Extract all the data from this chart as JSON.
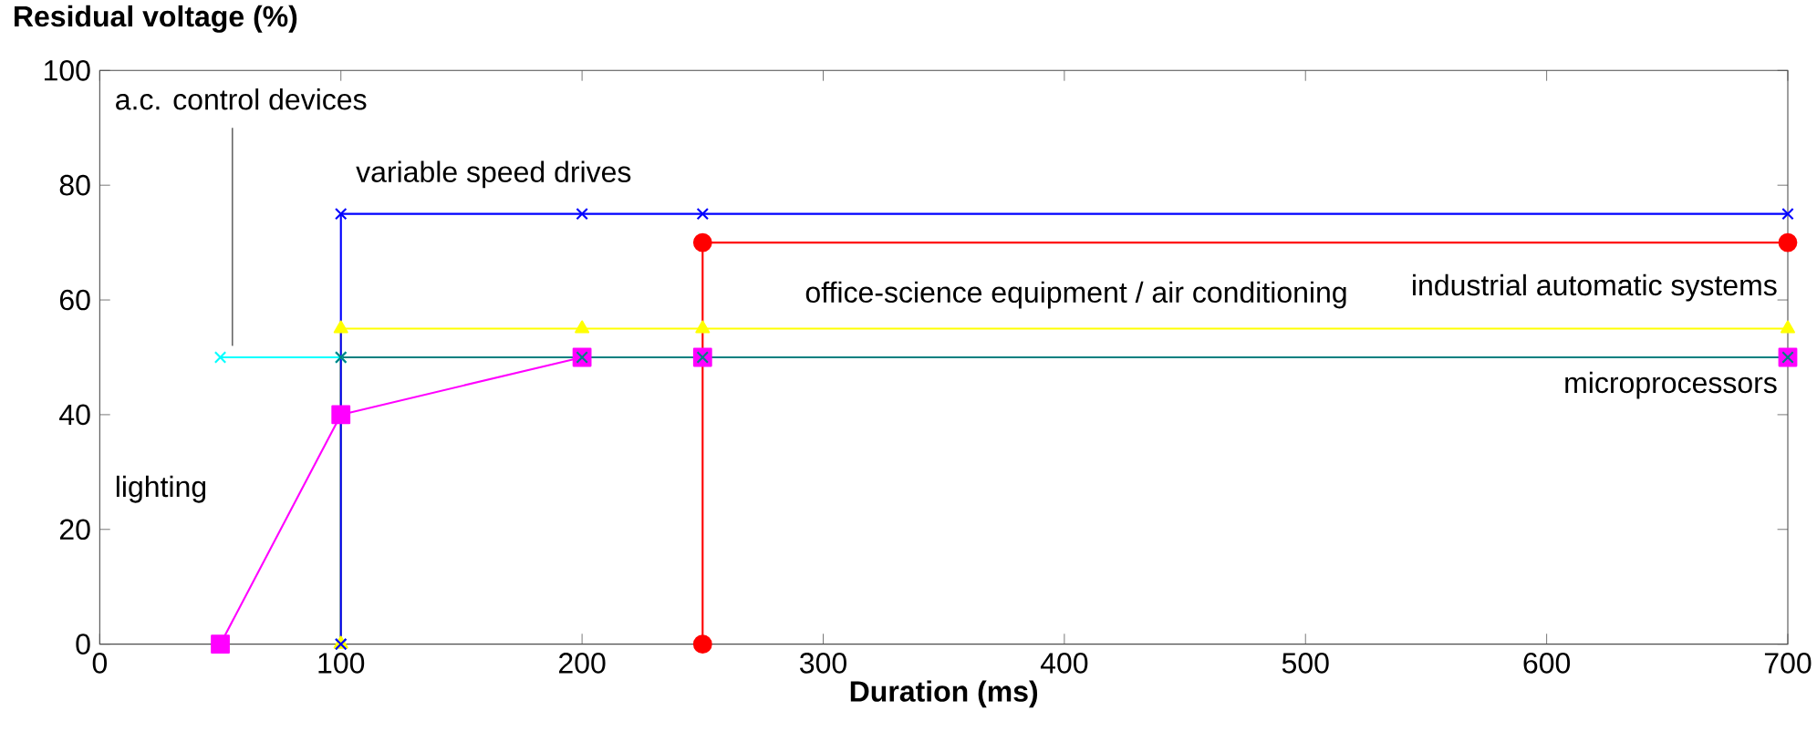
{
  "chart_data": {
    "type": "line",
    "xlabel": "Duration (ms)",
    "ylabel": "Residual voltage (%)",
    "xlim": [
      0,
      700
    ],
    "xticks": [
      0,
      100,
      200,
      300,
      400,
      500,
      600,
      700
    ],
    "ylim": [
      0,
      100
    ],
    "yticks": [
      0,
      20,
      40,
      60,
      80,
      100
    ],
    "grid": false,
    "series": [
      {
        "name": "variable speed drives",
        "color": "#0000ff",
        "marker": "cross",
        "x": [
          100,
          100,
          200,
          250,
          700
        ],
        "values": [
          0,
          75,
          75,
          75,
          75
        ]
      },
      {
        "name": "industrial automatic systems",
        "color": "#ff0000",
        "marker": "circle",
        "x": [
          250,
          250,
          700
        ],
        "values": [
          0,
          70,
          70
        ]
      },
      {
        "name": "office-science equipment / air conditioning",
        "color": "#ffff00",
        "marker": "triangle",
        "x": [
          100,
          100,
          200,
          250,
          700
        ],
        "values": [
          0,
          55,
          55,
          55,
          55
        ]
      },
      {
        "name": "microprocessors",
        "color": "#008080",
        "marker": "cross",
        "x": [
          100,
          100,
          200,
          250,
          700
        ],
        "values": [
          0,
          50,
          50,
          50,
          50
        ]
      },
      {
        "name": "a.c. control devices",
        "color": "#00ffff",
        "marker": "cross",
        "x": [
          50,
          100
        ],
        "values": [
          50,
          50
        ]
      },
      {
        "name": "lighting",
        "color": "#ff00ff",
        "marker": "square",
        "x": [
          50,
          100,
          200,
          250,
          700
        ],
        "values": [
          0,
          40,
          50,
          50,
          50
        ]
      }
    ]
  }
}
